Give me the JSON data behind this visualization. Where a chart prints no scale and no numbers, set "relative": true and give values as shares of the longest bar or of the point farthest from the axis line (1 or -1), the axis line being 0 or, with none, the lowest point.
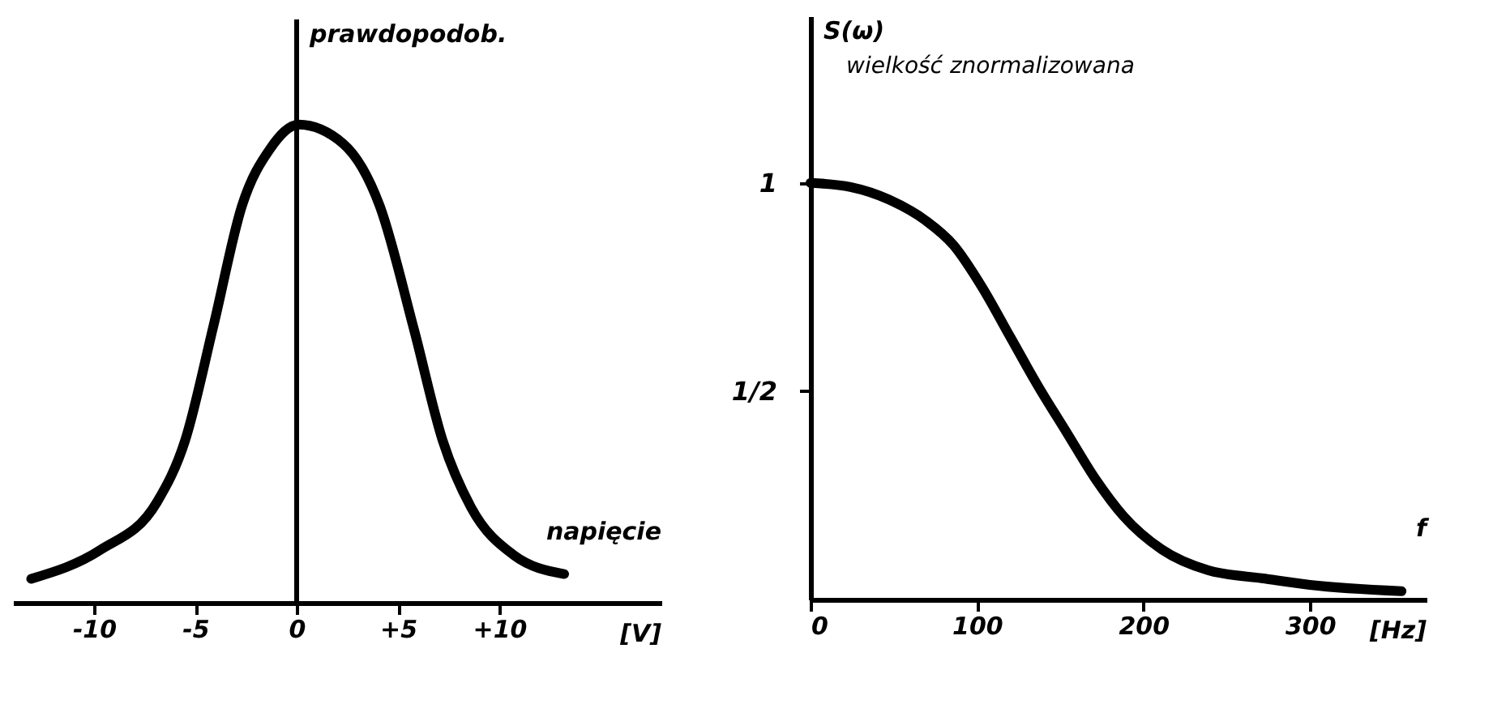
{
  "chart_data": [
    {
      "type": "line",
      "relative": true,
      "ylabel": "prawdopodob.",
      "xlabel": "napięcie",
      "annotations": [
        "[V]"
      ],
      "xlim": [
        -14,
        18
      ],
      "xticks": [
        -10,
        -5,
        0,
        {
          "value": 5,
          "label": "+5"
        },
        {
          "value": 10,
          "label": "+10"
        }
      ],
      "x": [
        -13.1,
        -9.7,
        -6.9,
        -5.5,
        -4.1,
        -2.7,
        -1.3,
        0.1,
        2.3,
        4.1,
        5.8,
        7.2,
        8.6,
        10.7,
        13.2
      ],
      "series": [
        {
          "color": "#000000",
          "values": [
            0.05,
            0.11,
            0.21,
            0.34,
            0.58,
            0.83,
            0.95,
            1,
            0.96,
            0.83,
            0.57,
            0.34,
            0.2,
            0.1,
            0.06
          ]
        }
      ]
    },
    {
      "type": "line",
      "ylabel": "S(ω)",
      "subtitle": "wielkość znormalizowana",
      "xlabel": "f",
      "annotations": [
        "[Hz]"
      ],
      "xlim": [
        0,
        370
      ],
      "ylim": [
        0,
        1.4
      ],
      "xticks": [
        0,
        100,
        200,
        300
      ],
      "yticks": [
        1,
        {
          "value": 0.5,
          "label": "1/2"
        }
      ],
      "x": [
        0,
        24,
        47,
        69,
        86,
        103,
        120,
        137,
        154,
        171,
        188,
        211,
        239,
        273,
        300,
        355
      ],
      "series": [
        {
          "color": "#000000",
          "values": [
            1,
            0.99,
            0.96,
            0.91,
            0.85,
            0.75,
            0.63,
            0.51,
            0.4,
            0.29,
            0.2,
            0.12,
            0.07,
            0.05,
            0.035,
            0.02
          ]
        }
      ]
    }
  ]
}
